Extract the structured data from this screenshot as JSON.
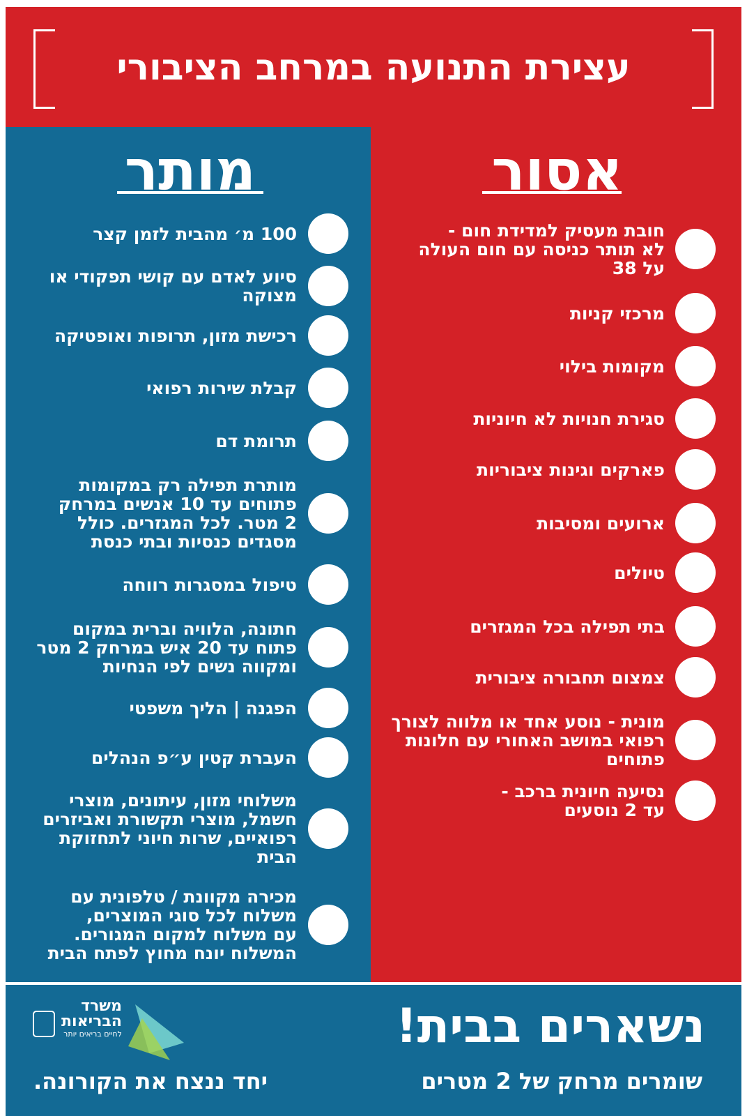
{
  "header": {
    "title": "עצירת התנועה במרחב הציבורי"
  },
  "allowed": {
    "heading": "מותר",
    "items": [
      {
        "lines": [
          "100 מ׳ מהבית לזמן קצר"
        ]
      },
      {
        "lines": [
          "סיוע לאדם עם קושי תפקודי או",
          "מצוקה"
        ]
      },
      {
        "lines": [
          "רכישת מזון, תרופות ואופטיקה"
        ]
      },
      {
        "lines": [
          "קבלת שירות רפואי"
        ]
      },
      {
        "lines": [
          "תרומת דם"
        ]
      },
      {
        "lines": [
          "מותרת תפילה רק במקומות",
          "פתוחים עד 10 אנשים במרחק",
          "2 מטר.  לכל המגזרים. כולל",
          "מסגדים כנסיות ובתי כנסת"
        ]
      },
      {
        "lines": [
          "טיפול במסגרות רווחה"
        ]
      },
      {
        "lines": [
          "חתונה, הלוויה וברית במקום",
          "פתוח עד 20 איש במרחק 2 מטר",
          "ומקווה נשים לפי הנחיות"
        ]
      },
      {
        "lines": [
          "הפגנה | הליך משפטי"
        ]
      },
      {
        "lines": [
          "העברת קטין ע״פ הנהלים"
        ]
      },
      {
        "lines": [
          "משלוחי מזון, עיתונים, מוצרי",
          "חשמל, מוצרי תקשורת ואביזרים",
          "רפואיים, שרות חיוני לתחזוקת",
          "הבית"
        ]
      },
      {
        "lines": [
          "מכירה מקוונת / טלפונית עם",
          "משלוח לכל סוגי המוצרים,",
          "עם משלוח למקום המגורים.",
          "המשלוח יונח מחוץ לפתח הבית"
        ]
      }
    ]
  },
  "forbidden": {
    "heading": "אסור",
    "items": [
      {
        "lines": [
          "חובת מעסיק למדידת חום -",
          "לא תותר כניסה עם חום העולה",
          "על 38"
        ]
      },
      {
        "lines": [
          "מרכזי קניות"
        ]
      },
      {
        "lines": [
          "מקומות בילוי"
        ]
      },
      {
        "lines": [
          "סגירת חנויות לא חיוניות"
        ]
      },
      {
        "lines": [
          "פארקים וגינות ציבוריות"
        ]
      },
      {
        "lines": [
          "ארועים ומסיבות"
        ]
      },
      {
        "lines": [
          "טיולים"
        ]
      },
      {
        "lines": [
          "בתי תפילה בכל המגזרים"
        ]
      },
      {
        "lines": [
          "צמצום תחבורה ציבורית"
        ]
      },
      {
        "lines": [
          "מונית - נוסע אחד או מלווה לצורך",
          "רפואי במושב האחורי עם חלונות",
          "פתוחים"
        ]
      },
      {
        "lines": [
          "נסיעה חיונית ברכב -",
          "עד 2 נוסעים"
        ]
      }
    ]
  },
  "footer": {
    "slogan": "נשארים בבית!",
    "subslogan": "שומרים מרחק של 2 מטרים",
    "ministry": [
      "משרד",
      "הבריאות"
    ],
    "tagline": "לחיים בריאים יותר",
    "closing": "יחד ננצח את הקורונה."
  }
}
